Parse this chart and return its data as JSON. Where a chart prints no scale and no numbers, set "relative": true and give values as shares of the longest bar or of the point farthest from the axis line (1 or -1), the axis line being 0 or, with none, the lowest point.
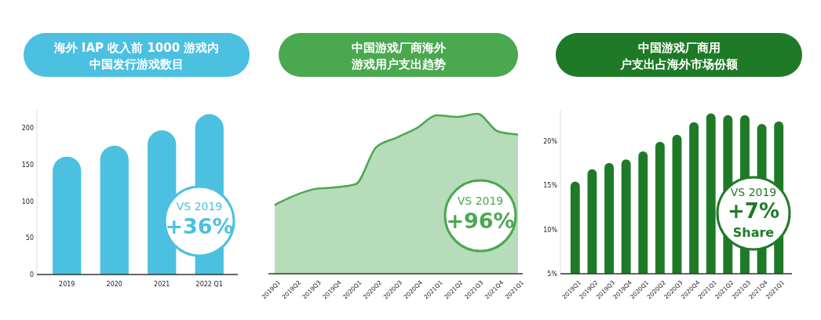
{
  "chart_data": [
    {
      "type": "bar",
      "title": "海外 IAP 收入前 1000 游戏内中国发行游戏数目",
      "categories": [
        "2019",
        "2020",
        "2021",
        "2022 Q1"
      ],
      "values": [
        161,
        176,
        197,
        219
      ],
      "color": "#4bc0e0",
      "ylim": [
        0,
        225
      ],
      "yticks": [
        0,
        50,
        100,
        150,
        200
      ],
      "annotations": [
        "VS 2019",
        "+36%"
      ]
    },
    {
      "type": "area",
      "title": "中国游戏厂商海外游戏用户支出趋势",
      "relative": true,
      "categories": [
        "2019Q1",
        "2019Q2",
        "2019Q3",
        "2019Q4",
        "2020Q1",
        "2020Q2",
        "2020Q3",
        "2020Q4",
        "2021Q1",
        "2021Q2",
        "2021Q3",
        "2021Q4",
        "2021Q1"
      ],
      "values": [
        0.43,
        0.49,
        0.53,
        0.54,
        0.56,
        0.79,
        0.85,
        0.91,
        0.99,
        0.98,
        1,
        0.89,
        0.87
      ],
      "color": "#4aa84f",
      "annotations": [
        "VS 2019",
        "+96%"
      ]
    },
    {
      "type": "bar",
      "title": "中国游戏厂商用户支出占海外市场份额",
      "categories": [
        "2019Q1",
        "2019Q2",
        "2019Q3",
        "2019Q4",
        "2020Q1",
        "2020Q2",
        "2020Q3",
        "2020Q4",
        "2021Q1",
        "2021Q2",
        "2021Q3",
        "2021Q4",
        "2021Q1"
      ],
      "values": [
        15.4,
        16.8,
        17.5,
        17.9,
        18.8,
        19.9,
        20.7,
        22.1,
        23.1,
        22.9,
        22.9,
        21.9,
        22.2
      ],
      "color": "#1f7a27",
      "ylim": [
        5,
        23.5
      ],
      "yticks": [
        {
          "value": 5,
          "label": "5%"
        },
        {
          "value": 10,
          "label": "10%"
        },
        {
          "value": 15,
          "label": "15%"
        },
        {
          "value": 20,
          "label": "20%"
        }
      ],
      "annotations": [
        "VS 2019",
        "+7%",
        "Share"
      ]
    }
  ]
}
